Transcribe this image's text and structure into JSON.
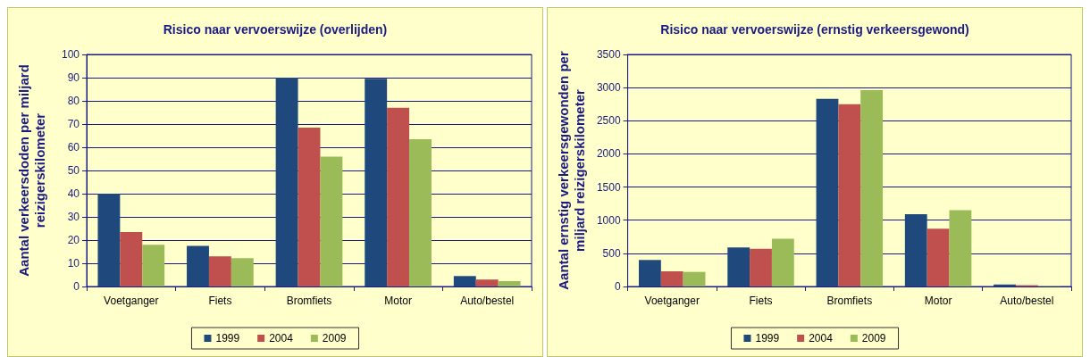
{
  "chart_data": [
    {
      "type": "bar",
      "title": "Risico naar vervoerswijze (overlijden)",
      "ylabel": "Aantal verkeersdoden per miljard reizigerskilometer",
      "categories": [
        "Voetganger",
        "Fiets",
        "Bromfiets",
        "Motor",
        "Auto/bestel"
      ],
      "series": [
        {
          "name": "1999",
          "color": "#1f497d",
          "values": [
            40,
            17.5,
            90,
            89.5,
            4.5
          ]
        },
        {
          "name": "2004",
          "color": "#c0504d",
          "values": [
            23.5,
            13,
            68.5,
            77,
            3
          ]
        },
        {
          "name": "2009",
          "color": "#9bbb59",
          "values": [
            18,
            12.2,
            56,
            63.5,
            2.3
          ]
        }
      ],
      "ylim": [
        0,
        100
      ],
      "yticks": [
        0,
        10,
        20,
        30,
        40,
        50,
        60,
        70,
        80,
        90,
        100
      ],
      "grid": "y",
      "legend": "bottom"
    },
    {
      "type": "bar",
      "title": "Risico naar vervoerswijze (ernstig verkeersgewond)",
      "ylabel": "Aantal ernstig verkeersgewonden per miljard reizigerskilometer",
      "categories": [
        "Voetganger",
        "Fiets",
        "Bromfiets",
        "Motor",
        "Auto/bestel"
      ],
      "series": [
        {
          "name": "1999",
          "color": "#1f497d",
          "values": [
            400,
            590,
            2830,
            1090,
            30
          ]
        },
        {
          "name": "2004",
          "color": "#c0504d",
          "values": [
            230,
            570,
            2750,
            870,
            20
          ]
        },
        {
          "name": "2009",
          "color": "#9bbb59",
          "values": [
            220,
            720,
            2960,
            1150,
            10
          ]
        }
      ],
      "ylim": [
        0,
        3500
      ],
      "yticks": [
        0,
        500,
        1000,
        1500,
        2000,
        2500,
        3000,
        3500
      ],
      "grid": "y",
      "legend": "bottom"
    }
  ]
}
